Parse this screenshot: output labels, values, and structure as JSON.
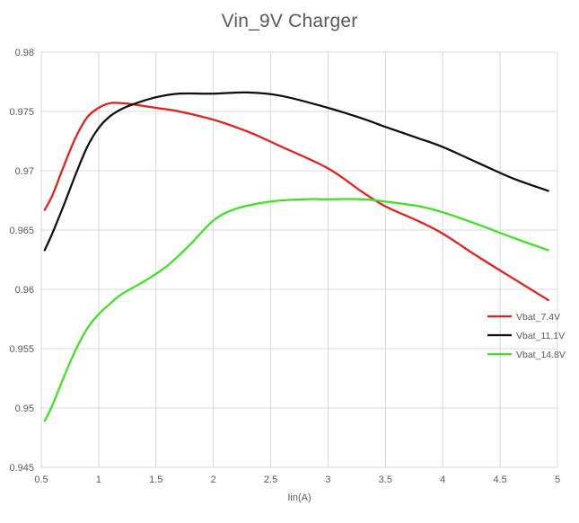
{
  "chart_data": {
    "type": "line",
    "title": "Vin_9V Charger",
    "xlabel": "Iin(A)",
    "ylabel": "",
    "xlim": [
      0.5,
      5
    ],
    "ylim": [
      0.945,
      0.98
    ],
    "x_ticks": [
      "0.5",
      "1",
      "1.5",
      "2",
      "2.5",
      "3",
      "3.5",
      "4",
      "4.5",
      "5"
    ],
    "y_ticks": [
      "0.945",
      "0.95",
      "0.955",
      "0.96",
      "0.965",
      "0.97",
      "0.975",
      "0.98"
    ],
    "grid": "vertical-and-horizontal",
    "legend_position": "right",
    "series": [
      {
        "name": "Vbat_7.4V",
        "color": "#e0201c",
        "x": [
          0.53,
          0.6,
          0.7,
          0.8,
          0.9,
          1.0,
          1.1,
          1.2,
          1.3,
          1.5,
          1.7,
          2.0,
          2.3,
          2.6,
          3.0,
          3.3,
          3.5,
          3.8,
          4.0,
          4.3,
          4.6,
          4.92
        ],
        "y": [
          0.9667,
          0.968,
          0.9705,
          0.9728,
          0.9745,
          0.9753,
          0.9757,
          0.9757,
          0.9756,
          0.9753,
          0.975,
          0.9743,
          0.9733,
          0.972,
          0.9702,
          0.9682,
          0.967,
          0.9657,
          0.9647,
          0.9628,
          0.961,
          0.9591
        ]
      },
      {
        "name": "Vbat_11.1V",
        "color": "#0d0d0d",
        "x": [
          0.53,
          0.6,
          0.7,
          0.8,
          0.9,
          1.0,
          1.1,
          1.2,
          1.3,
          1.5,
          1.7,
          2.0,
          2.3,
          2.6,
          3.0,
          3.3,
          3.5,
          3.8,
          4.0,
          4.3,
          4.6,
          4.92
        ],
        "y": [
          0.9633,
          0.9648,
          0.9672,
          0.9697,
          0.972,
          0.9736,
          0.9746,
          0.9752,
          0.9756,
          0.9762,
          0.9765,
          0.9765,
          0.9766,
          0.9763,
          0.9753,
          0.9744,
          0.9737,
          0.9727,
          0.972,
          0.9707,
          0.9694,
          0.9683
        ]
      },
      {
        "name": "Vbat_14.8V",
        "color": "#3ee022",
        "x": [
          0.53,
          0.6,
          0.7,
          0.8,
          0.9,
          1.0,
          1.1,
          1.2,
          1.4,
          1.6,
          1.8,
          2.0,
          2.2,
          2.5,
          2.8,
          3.0,
          3.3,
          3.5,
          3.8,
          4.0,
          4.3,
          4.6,
          4.92
        ],
        "y": [
          0.9489,
          0.9503,
          0.9527,
          0.9549,
          0.9567,
          0.9579,
          0.9588,
          0.9596,
          0.9607,
          0.962,
          0.9638,
          0.9658,
          0.9668,
          0.9674,
          0.9676,
          0.9676,
          0.9676,
          0.9674,
          0.967,
          0.9665,
          0.9655,
          0.9644,
          0.9633
        ]
      }
    ]
  }
}
